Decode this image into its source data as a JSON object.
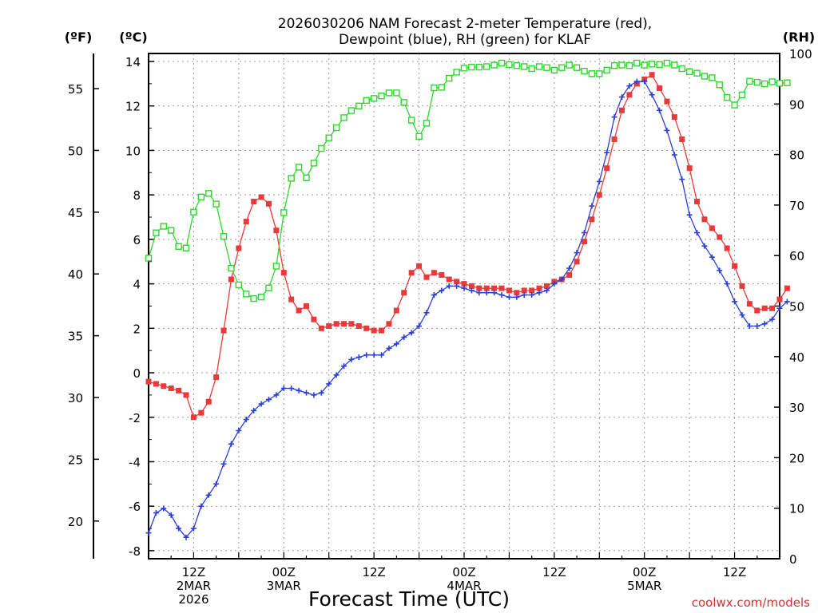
{
  "colors": {
    "temperature": "#e83a3a",
    "dewpoint": "#2a3fd8",
    "rh": "#2fd62f",
    "grid": "#9a9a9a",
    "credit": "#d43030"
  },
  "chart_data": {
    "type": "line",
    "title_line1": "2026030206 NAM Forecast 2-meter Temperature (red),",
    "title_line2": "Dewpoint (blue), RH (green) for KLAF",
    "xlabel": "Forecast Time (UTC)",
    "credit": "coolwx.com/models",
    "unit_f": "(ºF)",
    "unit_c": "(ºC)",
    "unit_rh": "(RH)",
    "x_range_hours": [
      0,
      84
    ],
    "xlim": [
      0,
      84
    ],
    "grid": true,
    "y_celsius": {
      "ylim": [
        -8.5,
        14.3
      ],
      "ticks": [
        "14",
        "12",
        "10",
        "8",
        "6",
        "4",
        "2",
        "0",
        "-2",
        "-4",
        "-6",
        "-8"
      ]
    },
    "y_fahrenheit": {
      "ticks": [
        "55",
        "50",
        "45",
        "40",
        "35",
        "30",
        "25",
        "20"
      ]
    },
    "y_rh": {
      "ylim": [
        0,
        100
      ],
      "ticks": [
        "100",
        "90",
        "80",
        "70",
        "60",
        "50",
        "40",
        "30",
        "20",
        "10",
        "0"
      ]
    },
    "x_ticks": [
      {
        "hour": 6,
        "lines": [
          "12Z",
          "2MAR",
          "2026"
        ]
      },
      {
        "hour": 18,
        "lines": [
          "00Z",
          "3MAR"
        ]
      },
      {
        "hour": 30,
        "lines": [
          "12Z"
        ]
      },
      {
        "hour": 42,
        "lines": [
          "00Z",
          "4MAR"
        ]
      },
      {
        "hour": 54,
        "lines": [
          "12Z"
        ]
      },
      {
        "hour": 66,
        "lines": [
          "00Z",
          "5MAR"
        ]
      },
      {
        "hour": 78,
        "lines": [
          "12Z"
        ]
      }
    ],
    "series": [
      {
        "key": "temperature",
        "units": "C",
        "values": [
          -0.4,
          -0.5,
          -0.6,
          -0.7,
          -0.8,
          -1.0,
          -2.0,
          -1.8,
          -1.3,
          -0.2,
          1.9,
          4.2,
          5.6,
          6.8,
          7.7,
          7.9,
          7.6,
          6.4,
          4.5,
          3.3,
          2.8,
          3.0,
          2.4,
          2.0,
          2.1,
          2.2,
          2.2,
          2.2,
          2.1,
          2.0,
          1.9,
          1.9,
          2.2,
          2.8,
          3.6,
          4.5,
          4.8,
          4.3,
          4.5,
          4.4,
          4.2,
          4.1,
          4.0,
          3.9,
          3.8,
          3.8,
          3.8,
          3.8,
          3.7,
          3.6,
          3.7,
          3.7,
          3.8,
          3.9,
          4.1,
          4.2,
          4.4,
          5.0,
          5.9,
          6.9,
          8.0,
          9.2,
          10.5,
          11.8,
          12.5,
          13.0,
          13.2,
          13.4,
          12.8,
          12.2,
          11.5,
          10.5,
          9.2,
          7.7,
          6.9,
          6.5,
          6.1,
          5.6,
          4.8,
          3.9,
          3.1,
          2.8,
          2.9,
          2.9,
          3.3,
          3.8
        ]
      },
      {
        "key": "dewpoint",
        "units": "C",
        "values": [
          -7.2,
          -6.3,
          -6.1,
          -6.4,
          -7.0,
          -7.4,
          -7.0,
          -6.0,
          -5.5,
          -5.0,
          -4.1,
          -3.2,
          -2.6,
          -2.1,
          -1.7,
          -1.4,
          -1.2,
          -1.0,
          -0.7,
          -0.7,
          -0.8,
          -0.9,
          -1.0,
          -0.9,
          -0.5,
          -0.1,
          0.3,
          0.6,
          0.7,
          0.8,
          0.8,
          0.8,
          1.1,
          1.3,
          1.6,
          1.8,
          2.1,
          2.7,
          3.5,
          3.7,
          3.9,
          3.9,
          3.8,
          3.7,
          3.6,
          3.6,
          3.6,
          3.5,
          3.4,
          3.4,
          3.5,
          3.5,
          3.6,
          3.7,
          4.0,
          4.2,
          4.7,
          5.4,
          6.3,
          7.5,
          8.6,
          9.9,
          11.5,
          12.4,
          12.9,
          13.1,
          13.1,
          12.5,
          11.8,
          10.9,
          9.8,
          8.7,
          7.1,
          6.3,
          5.7,
          5.2,
          4.6,
          4.0,
          3.2,
          2.6,
          2.1,
          2.1,
          2.2,
          2.4,
          2.9,
          3.2
        ]
      },
      {
        "key": "rh",
        "units": "%",
        "values": [
          59.5,
          64.5,
          65.8,
          65.0,
          61.8,
          61.5,
          68.6,
          71.6,
          72.3,
          70.2,
          63.8,
          57.5,
          54.2,
          52.4,
          51.5,
          51.8,
          53.6,
          57.9,
          68.5,
          75.3,
          77.5,
          75.4,
          78.3,
          81.2,
          83.3,
          85.3,
          87.3,
          88.7,
          89.6,
          90.7,
          91.1,
          91.6,
          92.2,
          92.2,
          90.3,
          86.8,
          83.6,
          86.2,
          93.2,
          93.3,
          95.1,
          96.3,
          97.1,
          97.3,
          97.3,
          97.4,
          97.7,
          98.1,
          97.8,
          97.6,
          97.4,
          97.0,
          97.4,
          97.2,
          96.7,
          97.2,
          97.7,
          97.2,
          96.5,
          96.0,
          96.0,
          96.7,
          97.6,
          97.7,
          97.6,
          98.1,
          97.7,
          97.9,
          97.8,
          98.1,
          97.7,
          97.0,
          96.4,
          96.1,
          95.5,
          95.2,
          93.8,
          91.3,
          89.8,
          91.8,
          94.5,
          94.3,
          94.0,
          94.4,
          94.1,
          94.2
        ]
      }
    ]
  }
}
